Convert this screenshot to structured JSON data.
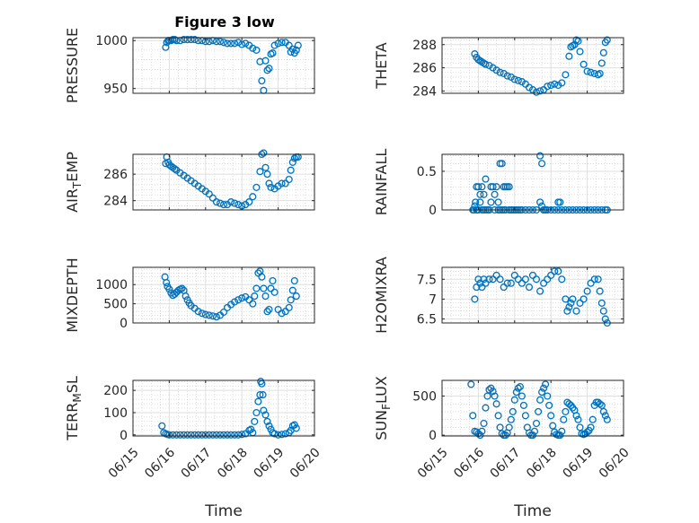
{
  "title": "Figure 3 low",
  "marker_color": "#0072bd",
  "xticks": [
    "06/15",
    "06/16",
    "06/17",
    "06/18",
    "06/19",
    "06/20"
  ],
  "chart_data": [
    {
      "type": "scatter",
      "ylabel": "PRESSURE",
      "ylabel_sub": "",
      "ylabel_tail": "",
      "xlabel": "",
      "xlim": [
        0,
        5
      ],
      "ylim": [
        945,
        1003
      ],
      "yticks": [
        950,
        1000
      ],
      "ytick_labels": [
        "950",
        "1000"
      ],
      "grid": true,
      "x": [
        0.9,
        0.93,
        0.97,
        1.0,
        1.05,
        1.1,
        1.15,
        1.2,
        1.3,
        1.4,
        1.5,
        1.6,
        1.7,
        1.8,
        1.9,
        2.0,
        2.1,
        2.2,
        2.3,
        2.4,
        2.5,
        2.6,
        2.7,
        2.8,
        2.9,
        3.0,
        3.1,
        3.2,
        3.3,
        3.4,
        3.5,
        3.55,
        3.6,
        3.65,
        3.7,
        3.75,
        3.8,
        3.85,
        3.9,
        4.0,
        4.1,
        4.2,
        4.3,
        4.35,
        4.4,
        4.45,
        4.5,
        4.55
      ],
      "y": [
        993,
        998,
        1000,
        1000,
        1000,
        1001,
        1001,
        1000,
        1000,
        1001,
        1001,
        1001,
        1001,
        1000,
        1000,
        999,
        999,
        1000,
        999,
        999,
        998,
        997,
        997,
        997,
        998,
        996,
        997,
        995,
        992,
        990,
        978,
        958,
        948,
        979,
        969,
        971,
        986,
        987,
        995,
        997,
        998,
        998,
        995,
        988,
        991,
        987,
        990,
        995
      ]
    },
    {
      "type": "scatter",
      "ylabel": "THETA",
      "ylabel_sub": "",
      "ylabel_tail": "",
      "xlabel": "",
      "xlim": [
        0,
        5
      ],
      "ylim": [
        283.8,
        288.6
      ],
      "yticks": [
        284,
        286,
        288
      ],
      "ytick_labels": [
        "284",
        "286",
        "288"
      ],
      "grid": true,
      "x": [
        0.9,
        0.95,
        1.0,
        1.05,
        1.1,
        1.15,
        1.2,
        1.3,
        1.4,
        1.5,
        1.6,
        1.7,
        1.8,
        1.9,
        2.0,
        2.1,
        2.2,
        2.3,
        2.4,
        2.5,
        2.6,
        2.7,
        2.8,
        2.9,
        3.0,
        3.1,
        3.2,
        3.3,
        3.4,
        3.5,
        3.55,
        3.6,
        3.65,
        3.7,
        3.75,
        3.8,
        3.9,
        4.0,
        4.1,
        4.2,
        4.3,
        4.35,
        4.4,
        4.45,
        4.5,
        4.55
      ],
      "y": [
        287.2,
        286.9,
        286.7,
        286.6,
        286.5,
        286.4,
        286.3,
        286.2,
        286.0,
        285.8,
        285.6,
        285.5,
        285.3,
        285.2,
        285.0,
        284.9,
        284.8,
        284.6,
        284.3,
        284.1,
        283.9,
        284.0,
        284.1,
        284.4,
        284.5,
        284.6,
        284.5,
        284.7,
        285.4,
        287.0,
        287.8,
        287.9,
        288.0,
        288.4,
        288.3,
        287.4,
        286.3,
        285.7,
        285.6,
        285.5,
        285.4,
        285.5,
        286.4,
        287.3,
        288.2,
        288.4
      ]
    },
    {
      "type": "scatter",
      "ylabel": "AIR",
      "ylabel_sub": "T",
      "ylabel_tail": "EMP",
      "xlabel": "",
      "xlim": [
        0,
        5
      ],
      "ylim": [
        283.3,
        287.5
      ],
      "yticks": [
        284,
        286
      ],
      "ytick_labels": [
        "284",
        "286"
      ],
      "grid": true,
      "x": [
        0.9,
        0.93,
        0.97,
        1.0,
        1.05,
        1.1,
        1.15,
        1.2,
        1.3,
        1.4,
        1.5,
        1.6,
        1.7,
        1.8,
        1.9,
        2.0,
        2.1,
        2.2,
        2.3,
        2.4,
        2.5,
        2.6,
        2.7,
        2.8,
        2.9,
        3.0,
        3.1,
        3.2,
        3.3,
        3.4,
        3.5,
        3.55,
        3.6,
        3.65,
        3.7,
        3.75,
        3.8,
        3.9,
        4.0,
        4.1,
        4.2,
        4.3,
        4.35,
        4.4,
        4.45,
        4.5,
        4.55
      ],
      "y": [
        286.8,
        287.3,
        286.9,
        286.7,
        286.6,
        286.5,
        286.4,
        286.3,
        286.1,
        285.9,
        285.7,
        285.5,
        285.3,
        285.1,
        284.9,
        284.7,
        284.5,
        284.2,
        283.9,
        283.8,
        283.7,
        283.7,
        283.9,
        283.8,
        283.7,
        283.6,
        283.7,
        283.9,
        284.3,
        285.0,
        286.2,
        287.5,
        287.6,
        286.5,
        286.0,
        285.3,
        285.0,
        284.9,
        285.1,
        285.3,
        285.3,
        285.6,
        286.3,
        286.9,
        287.2,
        287.3,
        287.3
      ]
    },
    {
      "type": "scatter",
      "ylabel": "RAINFALL",
      "ylabel_sub": "",
      "ylabel_tail": "",
      "xlabel": "",
      "xlim": [
        0,
        5
      ],
      "ylim": [
        0,
        0.72
      ],
      "yticks": [
        0,
        0.5
      ],
      "ytick_labels": [
        "0",
        "0.5"
      ],
      "grid": true,
      "x": [
        0.85,
        0.88,
        0.92,
        0.95,
        0.97,
        1.0,
        1.05,
        1.1,
        1.15,
        1.2,
        1.25,
        1.3,
        1.35,
        1.4,
        1.45,
        1.5,
        1.55,
        1.6,
        1.65,
        1.7,
        1.75,
        1.8,
        1.85,
        1.9,
        1.95,
        2.0,
        2.05,
        2.1,
        2.15,
        2.2,
        2.3,
        2.4,
        2.5,
        2.6,
        2.7,
        2.75,
        2.8,
        2.85,
        2.9,
        3.0,
        3.1,
        3.2,
        3.3,
        3.4,
        3.5,
        3.6,
        3.7,
        3.8,
        3.9,
        4.0,
        4.1,
        4.2,
        4.3,
        4.4,
        4.5,
        4.55,
        0.9,
        0.95,
        1.0,
        1.05,
        1.1,
        1.15,
        1.2,
        1.3,
        1.35,
        1.45,
        1.55,
        1.6,
        1.65,
        1.7,
        1.75,
        1.85,
        1.9,
        2.7,
        2.75,
        2.8,
        2.85,
        3.2,
        3.25
      ],
      "y": [
        0,
        0,
        0.1,
        0.3,
        0,
        0.3,
        0.2,
        0.3,
        0.2,
        0.4,
        0,
        0,
        0.3,
        0.3,
        0.2,
        0.3,
        0.1,
        0.6,
        0.6,
        0.3,
        0,
        0.3,
        0.3,
        0,
        0,
        0,
        0,
        0,
        0,
        0,
        0,
        0,
        0,
        0,
        0.7,
        0.6,
        0,
        0,
        0,
        0,
        0,
        0,
        0,
        0,
        0,
        0,
        0,
        0,
        0,
        0,
        0,
        0,
        0,
        0,
        0,
        0,
        0.05,
        0,
        0,
        0.1,
        0,
        0,
        0,
        0,
        0.1,
        0,
        0,
        0,
        0,
        0,
        0.3,
        0,
        0,
        0.1,
        0.05,
        0,
        0,
        0.1,
        0.1
      ]
    },
    {
      "type": "scatter",
      "ylabel": "MIXDEPTH",
      "ylabel_sub": "",
      "ylabel_tail": "",
      "xlabel": "",
      "xlim": [
        0,
        5
      ],
      "ylim": [
        0,
        1450
      ],
      "yticks": [
        0,
        500,
        1000
      ],
      "ytick_labels": [
        "0",
        "500",
        "1000"
      ],
      "grid": true,
      "x": [
        0.88,
        0.92,
        0.95,
        1.0,
        1.05,
        1.1,
        1.15,
        1.2,
        1.25,
        1.3,
        1.35,
        1.4,
        1.45,
        1.5,
        1.55,
        1.6,
        1.7,
        1.8,
        1.9,
        2.0,
        2.1,
        2.2,
        2.3,
        2.4,
        2.5,
        2.6,
        2.7,
        2.8,
        2.9,
        3.0,
        3.1,
        3.2,
        3.3,
        3.35,
        3.4,
        3.45,
        3.5,
        3.55,
        3.6,
        3.65,
        3.7,
        3.75,
        3.8,
        3.85,
        3.9,
        4.0,
        4.1,
        4.2,
        4.3,
        4.35,
        4.4,
        4.45,
        4.5
      ],
      "y": [
        1200,
        1050,
        950,
        880,
        780,
        720,
        750,
        800,
        850,
        880,
        900,
        850,
        700,
        600,
        520,
        450,
        380,
        300,
        250,
        220,
        200,
        180,
        160,
        200,
        280,
        400,
        480,
        550,
        600,
        650,
        680,
        600,
        500,
        700,
        900,
        1300,
        1350,
        1200,
        900,
        700,
        300,
        350,
        900,
        1100,
        800,
        350,
        250,
        300,
        400,
        600,
        850,
        1100,
        700
      ]
    },
    {
      "type": "scatter",
      "ylabel": "H2OMIXRA",
      "ylabel_sub": "",
      "ylabel_tail": "",
      "xlabel": "",
      "xlim": [
        0,
        5
      ],
      "ylim": [
        6.4,
        7.8
      ],
      "yticks": [
        6.5,
        7,
        7.5
      ],
      "ytick_labels": [
        "6.5",
        "7",
        "7.5"
      ],
      "grid": true,
      "x": [
        0.9,
        0.95,
        1.0,
        1.05,
        1.1,
        1.15,
        1.2,
        1.3,
        1.4,
        1.5,
        1.6,
        1.7,
        1.8,
        1.9,
        2.0,
        2.1,
        2.2,
        2.3,
        2.4,
        2.5,
        2.6,
        2.7,
        2.8,
        2.9,
        3.0,
        3.1,
        3.2,
        3.3,
        3.4,
        3.45,
        3.5,
        3.55,
        3.6,
        3.7,
        3.8,
        3.9,
        4.0,
        4.1,
        4.2,
        4.3,
        4.35,
        4.4,
        4.45,
        4.5,
        4.55
      ],
      "y": [
        7.0,
        7.3,
        7.5,
        7.4,
        7.3,
        7.5,
        7.4,
        7.5,
        7.5,
        7.6,
        7.5,
        7.3,
        7.4,
        7.4,
        7.6,
        7.5,
        7.4,
        7.5,
        7.3,
        7.6,
        7.5,
        7.2,
        7.4,
        7.5,
        7.6,
        7.7,
        7.7,
        7.5,
        7.0,
        6.7,
        6.8,
        6.9,
        7.0,
        6.7,
        6.9,
        7.0,
        7.2,
        7.4,
        7.5,
        7.5,
        7.2,
        6.9,
        6.7,
        6.5,
        6.4
      ]
    },
    {
      "type": "scatter",
      "ylabel": "TERR",
      "ylabel_sub": "M",
      "ylabel_tail": "SL",
      "xlabel": "Time",
      "xlim": [
        0,
        5
      ],
      "ylim": [
        -5,
        245
      ],
      "yticks": [
        0,
        100,
        200
      ],
      "ytick_labels": [
        "0",
        "100",
        "200"
      ],
      "grid": true,
      "x": [
        0.8,
        0.85,
        0.9,
        0.95,
        1.0,
        1.1,
        1.2,
        1.3,
        1.4,
        1.5,
        1.6,
        1.7,
        1.8,
        1.9,
        2.0,
        2.1,
        2.2,
        2.3,
        2.4,
        2.5,
        2.6,
        2.7,
        2.8,
        2.9,
        3.0,
        3.1,
        3.2,
        3.25,
        3.3,
        3.35,
        3.4,
        3.45,
        3.5,
        3.52,
        3.55,
        3.58,
        3.6,
        3.65,
        3.7,
        3.75,
        3.8,
        3.85,
        3.9,
        4.0,
        4.1,
        4.2,
        4.3,
        4.35,
        4.4,
        4.45,
        4.5
      ],
      "y": [
        40,
        10,
        5,
        2,
        0,
        0,
        0,
        0,
        0,
        0,
        0,
        0,
        0,
        0,
        0,
        0,
        0,
        0,
        0,
        0,
        0,
        0,
        0,
        0,
        2,
        5,
        20,
        25,
        10,
        60,
        100,
        150,
        180,
        240,
        230,
        180,
        110,
        90,
        60,
        40,
        25,
        10,
        5,
        0,
        2,
        5,
        10,
        20,
        40,
        45,
        30
      ]
    },
    {
      "type": "scatter",
      "ylabel": "SUN",
      "ylabel_sub": "F",
      "ylabel_tail": "LUX",
      "xlabel": "Time",
      "xlim": [
        0,
        5
      ],
      "ylim": [
        -10,
        700
      ],
      "yticks": [
        0,
        500
      ],
      "ytick_labels": [
        "0",
        "500"
      ],
      "grid": true,
      "x": [
        0.8,
        0.85,
        0.9,
        0.95,
        1.0,
        1.05,
        1.1,
        1.15,
        1.2,
        1.25,
        1.3,
        1.35,
        1.4,
        1.45,
        1.5,
        1.55,
        1.6,
        1.65,
        1.7,
        1.75,
        1.8,
        1.85,
        1.9,
        1.95,
        2.0,
        2.05,
        2.1,
        2.15,
        2.2,
        2.25,
        2.3,
        2.35,
        2.4,
        2.45,
        2.5,
        2.55,
        2.6,
        2.65,
        2.7,
        2.75,
        2.8,
        2.85,
        2.9,
        2.95,
        3.0,
        3.05,
        3.1,
        3.15,
        3.2,
        3.25,
        3.3,
        3.35,
        3.4,
        3.45,
        3.5,
        3.55,
        3.6,
        3.65,
        3.7,
        3.75,
        3.8,
        3.85,
        3.9,
        3.95,
        4.0,
        4.05,
        4.1,
        4.15,
        4.2,
        4.25,
        4.3,
        4.35,
        4.4,
        4.45,
        4.5,
        4.55
      ],
      "y": [
        650,
        250,
        50,
        40,
        20,
        0,
        50,
        150,
        350,
        500,
        580,
        600,
        560,
        500,
        400,
        250,
        100,
        20,
        0,
        0,
        30,
        100,
        200,
        300,
        450,
        550,
        600,
        620,
        500,
        380,
        250,
        100,
        30,
        0,
        0,
        50,
        150,
        300,
        450,
        550,
        600,
        650,
        500,
        380,
        250,
        120,
        40,
        10,
        0,
        0,
        50,
        200,
        300,
        420,
        400,
        380,
        350,
        320,
        250,
        200,
        100,
        20,
        10,
        20,
        40,
        60,
        100,
        200,
        380,
        420,
        420,
        400,
        380,
        300,
        250,
        200
      ]
    }
  ]
}
